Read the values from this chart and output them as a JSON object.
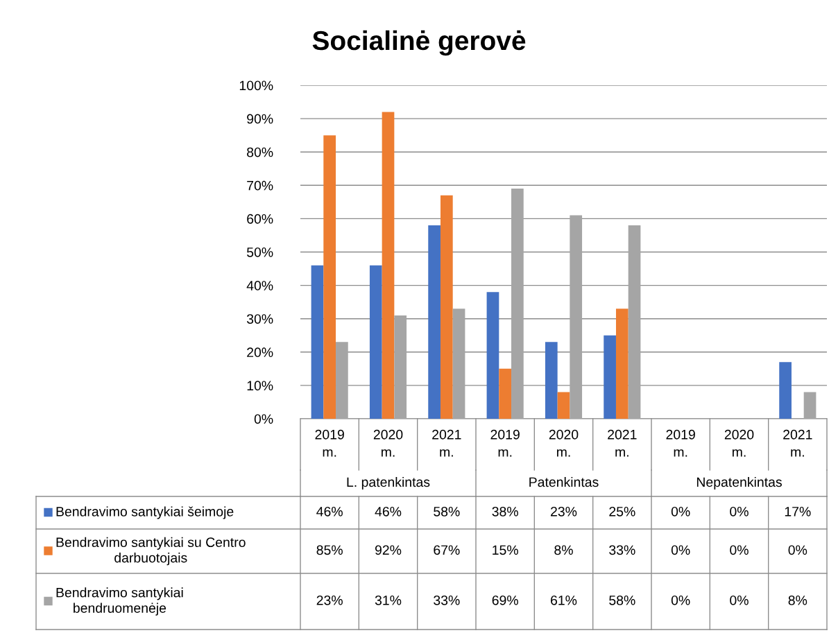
{
  "chart_data": {
    "type": "bar",
    "title": "Socialinė gerovė",
    "categories": [
      "2019 m.",
      "2020 m.",
      "2021 m.",
      "2019 m.",
      "2020 m.",
      "2021 m.",
      "2019 m.",
      "2020 m.",
      "2021 m."
    ],
    "annotations": [
      "L. patenkintas",
      "Patenkintas",
      "Nepatenkintas"
    ],
    "series": [
      {
        "name": "Bendravimo santykiai šeimoje",
        "color": "#4472c4",
        "values": [
          46,
          46,
          58,
          38,
          23,
          25,
          0,
          0,
          17
        ],
        "value_labels": [
          "46%",
          "46%",
          "58%",
          "38%",
          "23%",
          "25%",
          "0%",
          "0%",
          "17%"
        ]
      },
      {
        "name": "Bendravimo santykiai su Centro darbuotojais",
        "color": "#ed7d31",
        "values": [
          85,
          92,
          67,
          15,
          8,
          33,
          0,
          0,
          0
        ],
        "value_labels": [
          "85%",
          "92%",
          "67%",
          "15%",
          "8%",
          "33%",
          "0%",
          "0%",
          "0%"
        ]
      },
      {
        "name": "Bendravimo santykiai bendruomenėje",
        "color": "#a5a5a5",
        "values": [
          23,
          31,
          33,
          69,
          61,
          58,
          0,
          0,
          8
        ],
        "value_labels": [
          "23%",
          "31%",
          "33%",
          "69%",
          "61%",
          "58%",
          "0%",
          "0%",
          "8%"
        ]
      }
    ],
    "ylim": [
      0,
      100
    ],
    "yticks": [
      {
        "value": 0,
        "label": "0%"
      },
      {
        "value": 10,
        "label": "10%"
      },
      {
        "value": 20,
        "label": "20%"
      },
      {
        "value": 30,
        "label": "30%"
      },
      {
        "value": 40,
        "label": "40%"
      },
      {
        "value": 50,
        "label": "50%"
      },
      {
        "value": 60,
        "label": "60%"
      },
      {
        "value": 70,
        "label": "70%"
      },
      {
        "value": 80,
        "label": "80%"
      },
      {
        "value": 90,
        "label": "90%"
      },
      {
        "value": 100,
        "label": "100%"
      }
    ],
    "grid": "y",
    "legend": "bottom"
  }
}
